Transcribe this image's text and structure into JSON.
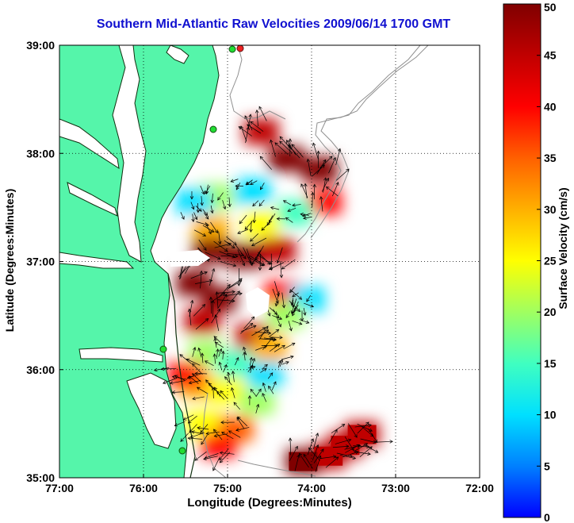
{
  "chart_data": {
    "type": "heatmap",
    "title": "Southern Mid-Atlantic Raw Velocities 2009/06/14 1700 GMT",
    "xlabel": "Longitude (Degrees:Minutes)",
    "ylabel": "Latitude (Degrees:Minutes)",
    "colorbar_label": "Surface Velocity (cm/s)",
    "xlim": [
      -77,
      -72
    ],
    "ylim": [
      35,
      39
    ],
    "x_ticks": [
      {
        "value": -77,
        "label": "77:00"
      },
      {
        "value": -76,
        "label": "76:00"
      },
      {
        "value": -75,
        "label": "75:00"
      },
      {
        "value": -74,
        "label": "74:00"
      },
      {
        "value": -73,
        "label": "73:00"
      },
      {
        "value": -72,
        "label": "72:00"
      }
    ],
    "y_ticks": [
      {
        "value": 35,
        "label": "35:00"
      },
      {
        "value": 36,
        "label": "36:00"
      },
      {
        "value": 37,
        "label": "37:00"
      },
      {
        "value": 38,
        "label": "38:00"
      },
      {
        "value": 39,
        "label": "39:00"
      }
    ],
    "colorbar": {
      "range": [
        0,
        50
      ],
      "ticks": [
        0,
        5,
        10,
        15,
        20,
        25,
        30,
        35,
        40,
        45,
        50
      ],
      "colormap": [
        "#0000ff",
        "#0080ff",
        "#00e0ff",
        "#40ffc0",
        "#a0ff60",
        "#ffff00",
        "#ffb000",
        "#ff6000",
        "#ff0000",
        "#c00000",
        "#800000"
      ]
    },
    "grid": true,
    "colors": {
      "land": "#55f5aa",
      "water": "#ffffff",
      "title": "#1010d0",
      "coast_line": "#000000",
      "bathymetry": "#909090",
      "station": "#22dd33",
      "station_alt": "#ee2222"
    },
    "speed_field": [
      {
        "lon": -74.6,
        "lat": 38.2,
        "speed": 45
      },
      {
        "lon": -74.3,
        "lat": 37.95,
        "speed": 50
      },
      {
        "lon": -73.9,
        "lat": 37.85,
        "speed": 48
      },
      {
        "lon": -73.85,
        "lat": 37.55,
        "speed": 40
      },
      {
        "lon": -74.7,
        "lat": 37.65,
        "speed": 12
      },
      {
        "lon": -75.15,
        "lat": 37.6,
        "speed": 18
      },
      {
        "lon": -75.4,
        "lat": 37.55,
        "speed": 12
      },
      {
        "lon": -74.2,
        "lat": 37.45,
        "speed": 15
      },
      {
        "lon": -74.6,
        "lat": 37.35,
        "speed": 25
      },
      {
        "lon": -75.2,
        "lat": 37.3,
        "speed": 32
      },
      {
        "lon": -75.2,
        "lat": 37.1,
        "speed": 48
      },
      {
        "lon": -74.8,
        "lat": 37.05,
        "speed": 50
      },
      {
        "lon": -74.4,
        "lat": 37.1,
        "speed": 46
      },
      {
        "lon": -75.4,
        "lat": 36.8,
        "speed": 50
      },
      {
        "lon": -75.1,
        "lat": 36.65,
        "speed": 48
      },
      {
        "lon": -74.35,
        "lat": 36.7,
        "speed": 42
      },
      {
        "lon": -74.05,
        "lat": 36.65,
        "speed": 10
      },
      {
        "lon": -74.3,
        "lat": 36.5,
        "speed": 22
      },
      {
        "lon": -75.3,
        "lat": 36.45,
        "speed": 46
      },
      {
        "lon": -74.7,
        "lat": 36.3,
        "speed": 44
      },
      {
        "lon": -74.5,
        "lat": 36.2,
        "speed": 30
      },
      {
        "lon": -75.25,
        "lat": 36.15,
        "speed": 20
      },
      {
        "lon": -74.9,
        "lat": 36.05,
        "speed": 14
      },
      {
        "lon": -74.55,
        "lat": 35.95,
        "speed": 10
      },
      {
        "lon": -75.35,
        "lat": 35.85,
        "speed": 28
      },
      {
        "lon": -75.0,
        "lat": 35.8,
        "speed": 24
      },
      {
        "lon": -74.65,
        "lat": 35.7,
        "speed": 18
      },
      {
        "lon": -75.5,
        "lat": 35.95,
        "speed": 40
      },
      {
        "lon": -75.3,
        "lat": 35.5,
        "speed": 26
      },
      {
        "lon": -74.9,
        "lat": 35.45,
        "speed": 34
      },
      {
        "lon": -75.1,
        "lat": 35.3,
        "speed": 38
      },
      {
        "lon": -73.8,
        "lat": 35.2,
        "speed": 46
      },
      {
        "lon": -73.6,
        "lat": 35.3,
        "speed": 44
      },
      {
        "lon": -73.4,
        "lat": 35.4,
        "speed": 46
      },
      {
        "lon": -74.1,
        "lat": 35.15,
        "speed": 48
      }
    ]
  }
}
